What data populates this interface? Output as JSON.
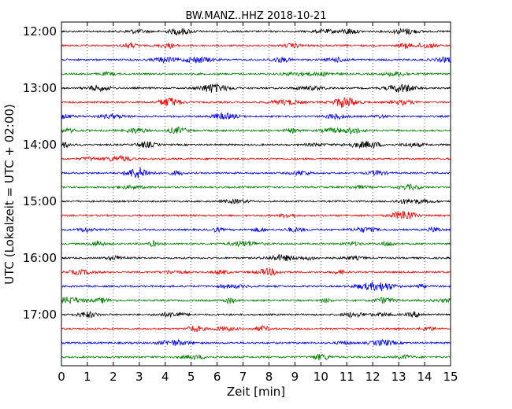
{
  "chart_data": {
    "type": "line",
    "title": "BW.MANZ..HHZ 2018-10-21",
    "xlabel": "Zeit  [min]",
    "ylabel": "UTC (Lokalzeit = UTC + 02:00)",
    "xlim": [
      0,
      15
    ],
    "x_ticks": [
      "0",
      "1",
      "2",
      "3",
      "4",
      "5",
      "6",
      "7",
      "8",
      "9",
      "10",
      "11",
      "12",
      "13",
      "14",
      "15"
    ],
    "y_ticks": [
      {
        "label": "12:00",
        "row": 0
      },
      {
        "label": "13:00",
        "row": 4
      },
      {
        "label": "14:00",
        "row": 8
      },
      {
        "label": "15:00",
        "row": 12
      },
      {
        "label": "16:00",
        "row": 16
      },
      {
        "label": "17:00",
        "row": 20
      }
    ],
    "grid": {
      "x_dotted": true
    },
    "row_interval_minutes": 15,
    "trace_colors": [
      "#000000",
      "#ff0000",
      "#0000ff",
      "#008000"
    ],
    "series": [
      {
        "start": "12:00",
        "color": "#000000"
      },
      {
        "start": "12:15",
        "color": "#ff0000"
      },
      {
        "start": "12:30",
        "color": "#0000ff"
      },
      {
        "start": "12:45",
        "color": "#008000"
      },
      {
        "start": "13:00",
        "color": "#000000"
      },
      {
        "start": "13:15",
        "color": "#ff0000"
      },
      {
        "start": "13:30",
        "color": "#0000ff"
      },
      {
        "start": "13:45",
        "color": "#008000"
      },
      {
        "start": "14:00",
        "color": "#000000"
      },
      {
        "start": "14:15",
        "color": "#ff0000"
      },
      {
        "start": "14:30",
        "color": "#0000ff"
      },
      {
        "start": "14:45",
        "color": "#008000"
      },
      {
        "start": "15:00",
        "color": "#000000"
      },
      {
        "start": "15:15",
        "color": "#ff0000"
      },
      {
        "start": "15:30",
        "color": "#0000ff"
      },
      {
        "start": "15:45",
        "color": "#008000"
      },
      {
        "start": "16:00",
        "color": "#000000"
      },
      {
        "start": "16:15",
        "color": "#ff0000"
      },
      {
        "start": "16:30",
        "color": "#0000ff"
      },
      {
        "start": "16:45",
        "color": "#008000"
      },
      {
        "start": "17:00",
        "color": "#000000"
      },
      {
        "start": "17:15",
        "color": "#ff0000"
      },
      {
        "start": "17:30",
        "color": "#0000ff"
      },
      {
        "start": "17:45",
        "color": "#008000"
      }
    ]
  }
}
